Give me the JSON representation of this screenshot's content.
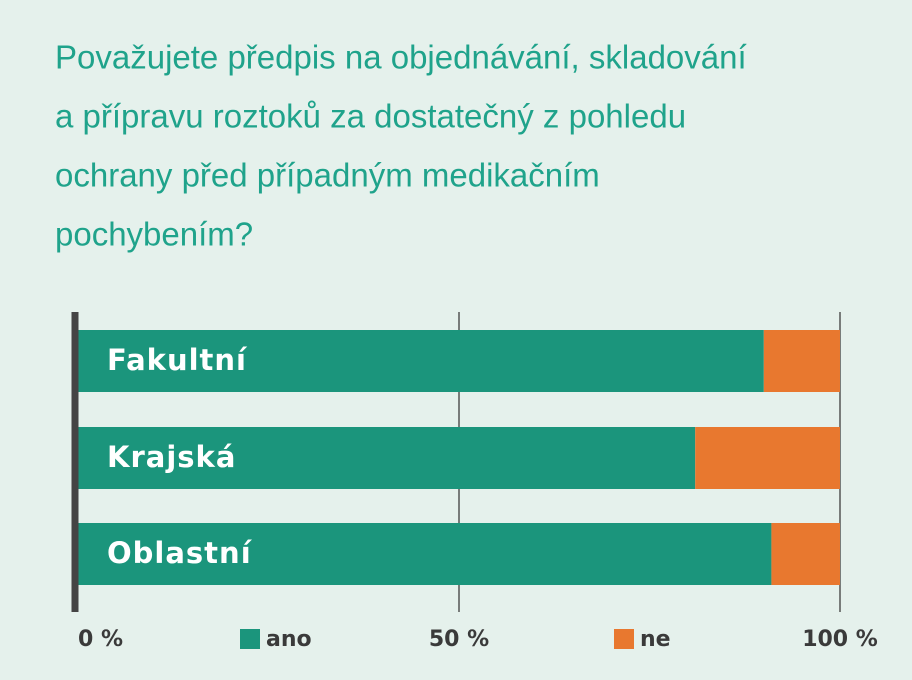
{
  "chart_data": {
    "type": "stacked-barh",
    "title": [
      "Považujete předpis na objednávání, skladování",
      "a přípravu roztoků za dostatečný z pohledu",
      "ochrany před případným medikačním",
      "pochybením?"
    ],
    "categories": [
      "Fakultní",
      "Krajská",
      "Oblastní"
    ],
    "series": [
      {
        "name": "ano",
        "color": "#1b957c",
        "values": [
          90,
          81,
          91
        ]
      },
      {
        "name": "ne",
        "color": "#e8782f",
        "values": [
          10,
          19,
          9
        ]
      }
    ],
    "xlim": [
      0,
      100
    ],
    "xticks": [
      {
        "value": 0,
        "label": "0 %"
      },
      {
        "value": 50,
        "label": "50 %"
      },
      {
        "value": 100,
        "label": "100 %"
      }
    ],
    "grid": true
  }
}
